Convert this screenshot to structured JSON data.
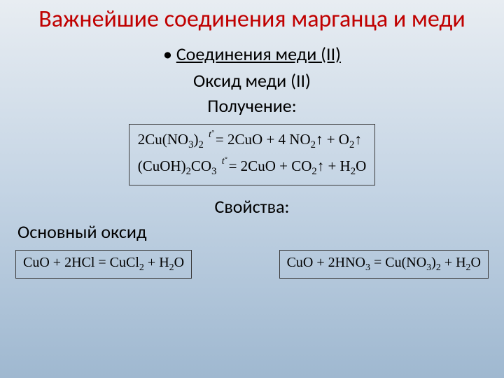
{
  "title_color": "#c00000",
  "text_color": "#000000",
  "title": "Важнейшие соединения марганца и меди",
  "bullet_marker": "•",
  "heading1": "Соединения меди (II)",
  "heading2": "Оксид меди (II)",
  "heading3": "Получение:",
  "equations_main": {
    "eq1_html": "2Cu(NO<sub>3</sub>)<sub>2</sub> <span class='tsym'>t</span>= 2CuO + 4 NO<sub>2</sub><span class='arrow'>↑</span> + O<sub>2</sub><span class='arrow'>↑</span>",
    "eq2_html": "(CuOH)<sub>2</sub>CO<sub>3</sub> <span class='tsym'>t</span>= 2CuO + CO<sub>2</sub><span class='arrow'>↑</span> + H<sub>2</sub>O"
  },
  "properties_label": "Свойства:",
  "basic_oxide_label": "Основный оксид",
  "equations_bottom": {
    "left_html": "CuO + 2HCl = CuCl<sub>2</sub> + H<sub>2</sub>O",
    "right_html": "CuO + 2HNO<sub>3</sub> = Cu(NO<sub>3</sub>)<sub>2</sub> + H<sub>2</sub>O"
  }
}
